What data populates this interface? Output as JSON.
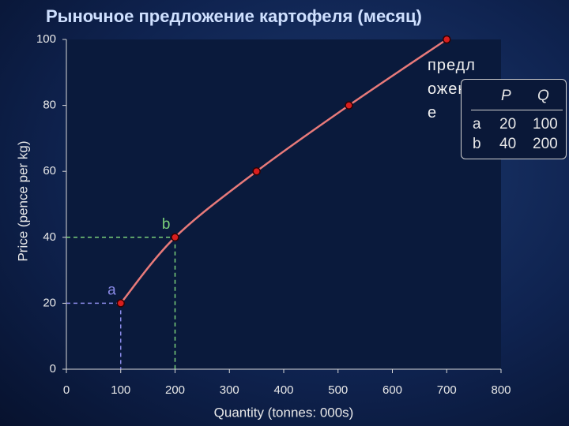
{
  "chart_data": {
    "type": "line",
    "title": "Рыночное предложение картофеля (месяц)",
    "x_label": "Quantity (tonnes: 000s)",
    "y_label": "Price (pence per kg)",
    "x": [
      100,
      200,
      350,
      520,
      700
    ],
    "series": [
      {
        "name": "предложение",
        "color": "#e87a7a",
        "values": [
          20,
          40,
          60,
          80,
          100
        ]
      }
    ],
    "point_labels": [
      "a",
      "b",
      null,
      null,
      null
    ],
    "xlim": [
      0,
      800
    ],
    "xticks": [
      0,
      100,
      200,
      300,
      400,
      500,
      600,
      700,
      800
    ],
    "ylim": [
      0,
      100
    ],
    "yticks": [
      0,
      20,
      40,
      60,
      80,
      100
    ],
    "grid": false
  },
  "table": {
    "headers": [
      "P",
      "Q"
    ],
    "rows": [
      [
        "a",
        20,
        100
      ],
      [
        "b",
        40,
        200
      ]
    ]
  }
}
